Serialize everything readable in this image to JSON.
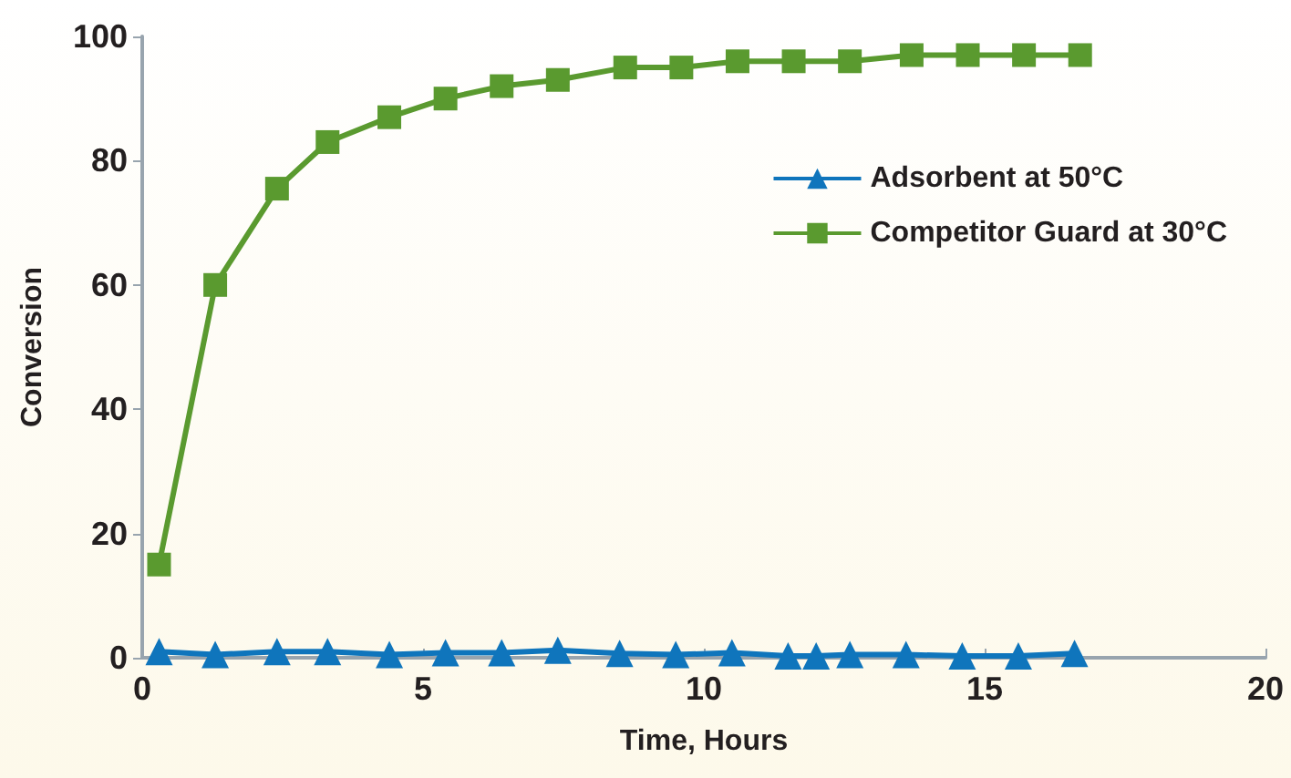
{
  "chart_data": {
    "type": "line",
    "xlabel": "Time, Hours",
    "ylabel": "Conversion",
    "xlim": [
      0,
      20
    ],
    "xticks": [
      0,
      5,
      10,
      15,
      20
    ],
    "ylim": [
      0,
      100
    ],
    "yticks": [
      0,
      20,
      40,
      60,
      80,
      100
    ],
    "legend": "top right",
    "line_style": "solid",
    "series": [
      {
        "name": "Adsorbent at 50°C",
        "color": "#0f75bc",
        "marker": "triangle",
        "x": [
          0.3,
          1.3,
          2.4,
          3.3,
          4.4,
          5.4,
          6.4,
          7.4,
          8.5,
          9.5,
          10.5,
          11.5,
          12,
          12.6,
          13.6,
          14.6,
          15.6,
          16.6
        ],
        "values": [
          1,
          0.5,
          1,
          1,
          0.5,
          0.8,
          0.8,
          1.2,
          0.7,
          0.5,
          0.8,
          0.3,
          0.3,
          0.5,
          0.5,
          0.3,
          0.3,
          0.7
        ]
      },
      {
        "name": "Competitor Guard at 30°C",
        "color": "#5a9a2f",
        "marker": "square",
        "x": [
          0.3,
          1.3,
          2.4,
          3.3,
          4.4,
          5.4,
          6.4,
          7.4,
          8.6,
          9.6,
          10.6,
          11.6,
          12.6,
          13.7,
          14.7,
          15.7,
          16.7
        ],
        "values": [
          15,
          60,
          75.5,
          83,
          87,
          90,
          92,
          93,
          95,
          95,
          96,
          96,
          96,
          97,
          97,
          97,
          97
        ]
      }
    ]
  }
}
